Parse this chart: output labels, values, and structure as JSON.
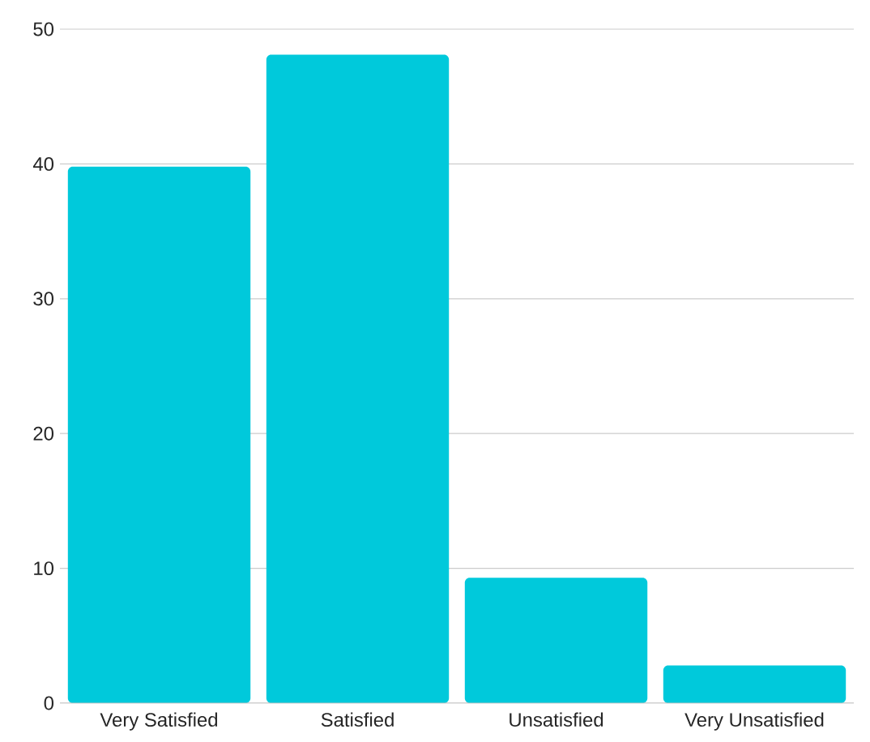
{
  "chart_data": {
    "type": "bar",
    "categories": [
      "Very Satisfied",
      "Satisfied",
      "Unsatisfied",
      "Very Unsatisfied"
    ],
    "values": [
      39.8,
      48.1,
      9.3,
      2.8
    ],
    "color": "#00c9db",
    "ylim": [
      0,
      50
    ],
    "yticks": [
      0,
      10,
      20,
      30,
      40,
      50
    ],
    "grid": "y"
  }
}
